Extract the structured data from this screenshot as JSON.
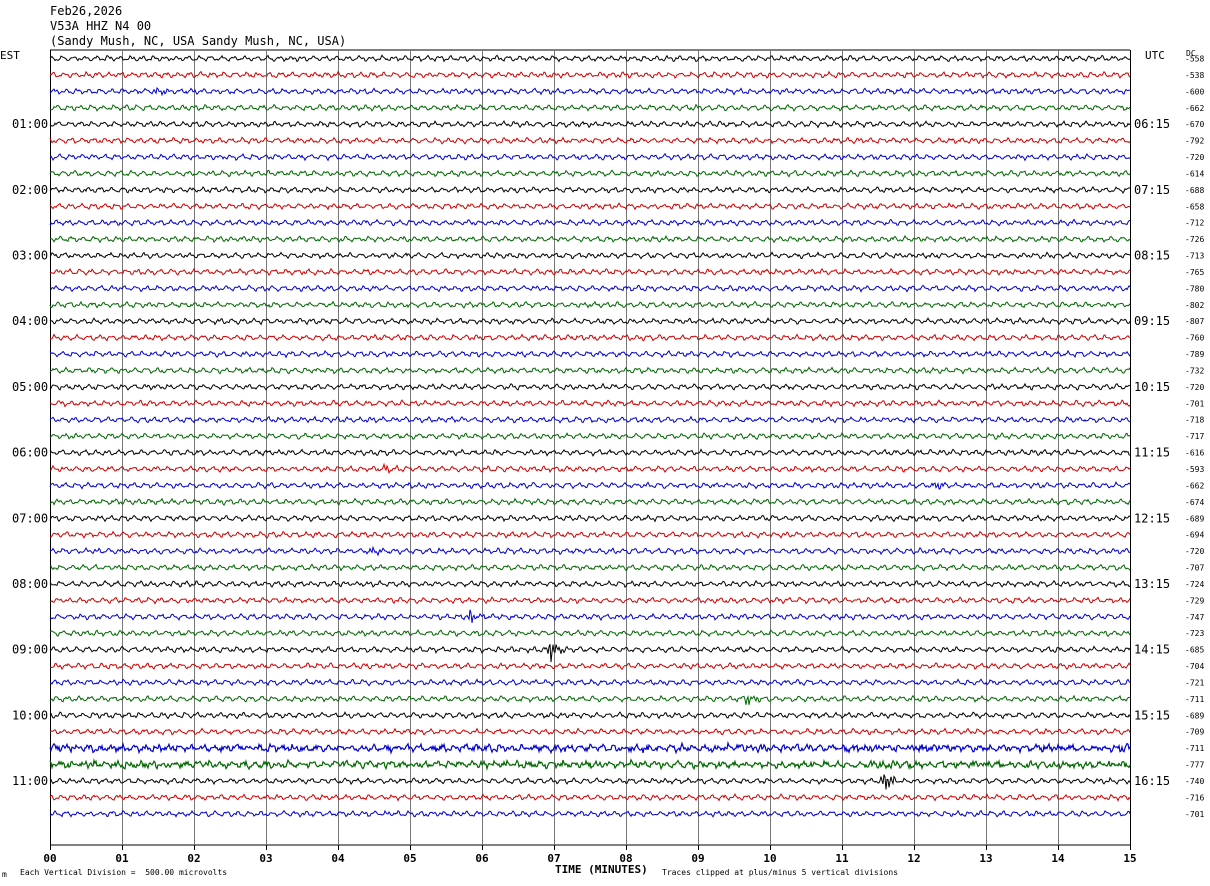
{
  "header": {
    "date": "Feb26,2026",
    "station": "V53A HHZ N4 00",
    "location": "(Sandy Mush, NC, USA Sandy Mush, NC, USA)"
  },
  "left_tz": "EST",
  "right_tz": "UTC",
  "dc_label": "DC",
  "footer": {
    "scale": "Each Vertical Division =  500.00 microvolts",
    "clip": "Traces clipped at plus/minus 5 vertical divisions",
    "corner_mark": "m"
  },
  "chart_data": {
    "type": "line",
    "title": "Feb26,2026 V53A HHZ N4 00",
    "xlabel": "TIME (MINUTES)",
    "xlim": [
      0,
      15
    ],
    "x_ticks": [
      "00",
      "01",
      "02",
      "03",
      "04",
      "05",
      "06",
      "07",
      "08",
      "09",
      "10",
      "11",
      "12",
      "13",
      "14",
      "15"
    ],
    "trace_colors": [
      "#000000",
      "#cc0000",
      "#0000cc",
      "#006600"
    ],
    "left_hour_labels": [
      "01:00",
      "02:00",
      "03:00",
      "04:00",
      "05:00",
      "06:00",
      "07:00",
      "08:00",
      "09:00",
      "10:00",
      "11:00"
    ],
    "right_hour_labels": [
      "06:15",
      "07:15",
      "08:15",
      "09:15",
      "10:15",
      "11:15",
      "12:15",
      "13:15",
      "14:15",
      "15:15",
      "16:15"
    ],
    "dc_offsets": [
      -558,
      -538,
      -600,
      -662,
      -670,
      -792,
      -720,
      -614,
      -688,
      -658,
      -712,
      -726,
      -713,
      -765,
      -780,
      -802,
      -807,
      -760,
      -789,
      -732,
      -720,
      -701,
      -718,
      -717,
      -616,
      -593,
      -662,
      -674,
      -689,
      -694,
      -720,
      -707,
      -724,
      -729,
      -747,
      -723,
      -685,
      -704,
      -721,
      -711,
      -689,
      -709,
      -711,
      -777,
      -740,
      -716,
      -701
    ],
    "events": [
      {
        "trace": 2,
        "minute": 1.5,
        "amplitude": "small"
      },
      {
        "trace": 25,
        "minute": 4.65,
        "amplitude": "small"
      },
      {
        "trace": 26,
        "minute": 12.3,
        "amplitude": "small"
      },
      {
        "trace": 30,
        "minute": 4.5,
        "amplitude": "small"
      },
      {
        "trace": 34,
        "minute": 5.85,
        "amplitude": "medium"
      },
      {
        "trace": 36,
        "minute": 6.95,
        "amplitude": "large"
      },
      {
        "trace": 39,
        "minute": 9.7,
        "amplitude": "medium"
      },
      {
        "trace": 44,
        "minute": 11.6,
        "amplitude": "large"
      }
    ],
    "noisy_traces": [
      42,
      43
    ]
  }
}
